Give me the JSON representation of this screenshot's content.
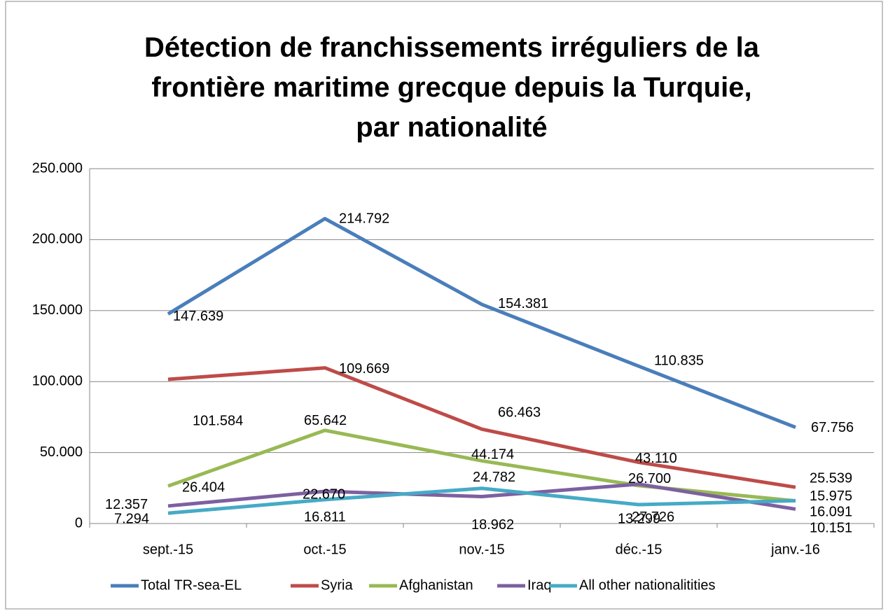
{
  "chart_data": {
    "type": "line",
    "title": "Détection de franchissements irréguliers de la frontière maritime grecque depuis la Turquie, par nationalité",
    "categories": [
      "sept.-15",
      "oct.-15",
      "nov.-15",
      "déc.-15",
      "janv.-16"
    ],
    "series": [
      {
        "name": "Total TR-sea-EL",
        "color": "#4a7ebb",
        "values": [
          147639,
          214792,
          154381,
          110835,
          67756
        ],
        "value_labels": [
          "147.639",
          "214.792",
          "154.381",
          "110.835",
          "67.756"
        ]
      },
      {
        "name": "Syria",
        "color": "#be4b48",
        "values": [
          101584,
          109669,
          66463,
          43110,
          25539
        ],
        "value_labels": [
          "101.584",
          "109.669",
          "66.463",
          "43.110",
          "25.539"
        ]
      },
      {
        "name": "Afghanistan",
        "color": "#98b954",
        "values": [
          26404,
          65642,
          44174,
          26700,
          15975
        ],
        "value_labels": [
          "26.404",
          "65.642",
          "44.174",
          "26.700",
          "15.975"
        ]
      },
      {
        "name": "Iraq",
        "color": "#7d60a0",
        "values": [
          12357,
          22670,
          18962,
          27726,
          10151
        ],
        "value_labels": [
          "12.357",
          "22.670",
          "18.962",
          "27.726",
          "10.151"
        ]
      },
      {
        "name": "All other nationalitities",
        "color": "#46aac5",
        "values": [
          7294,
          16811,
          24782,
          13299,
          16091
        ],
        "value_labels": [
          "7.294",
          "16.811",
          "24.782",
          "13.299",
          "16.091"
        ]
      }
    ],
    "ylim": [
      0,
      250000
    ],
    "yticks": [
      0,
      {
        "value": 50000,
        "label": "50.000"
      },
      {
        "value": 100000,
        "label": "100.000"
      },
      {
        "value": 150000,
        "label": "150.000"
      },
      {
        "value": 200000,
        "label": "200.000"
      },
      {
        "value": 250000,
        "label": "250.000"
      }
    ],
    "grid": true,
    "legend": "bottom"
  }
}
